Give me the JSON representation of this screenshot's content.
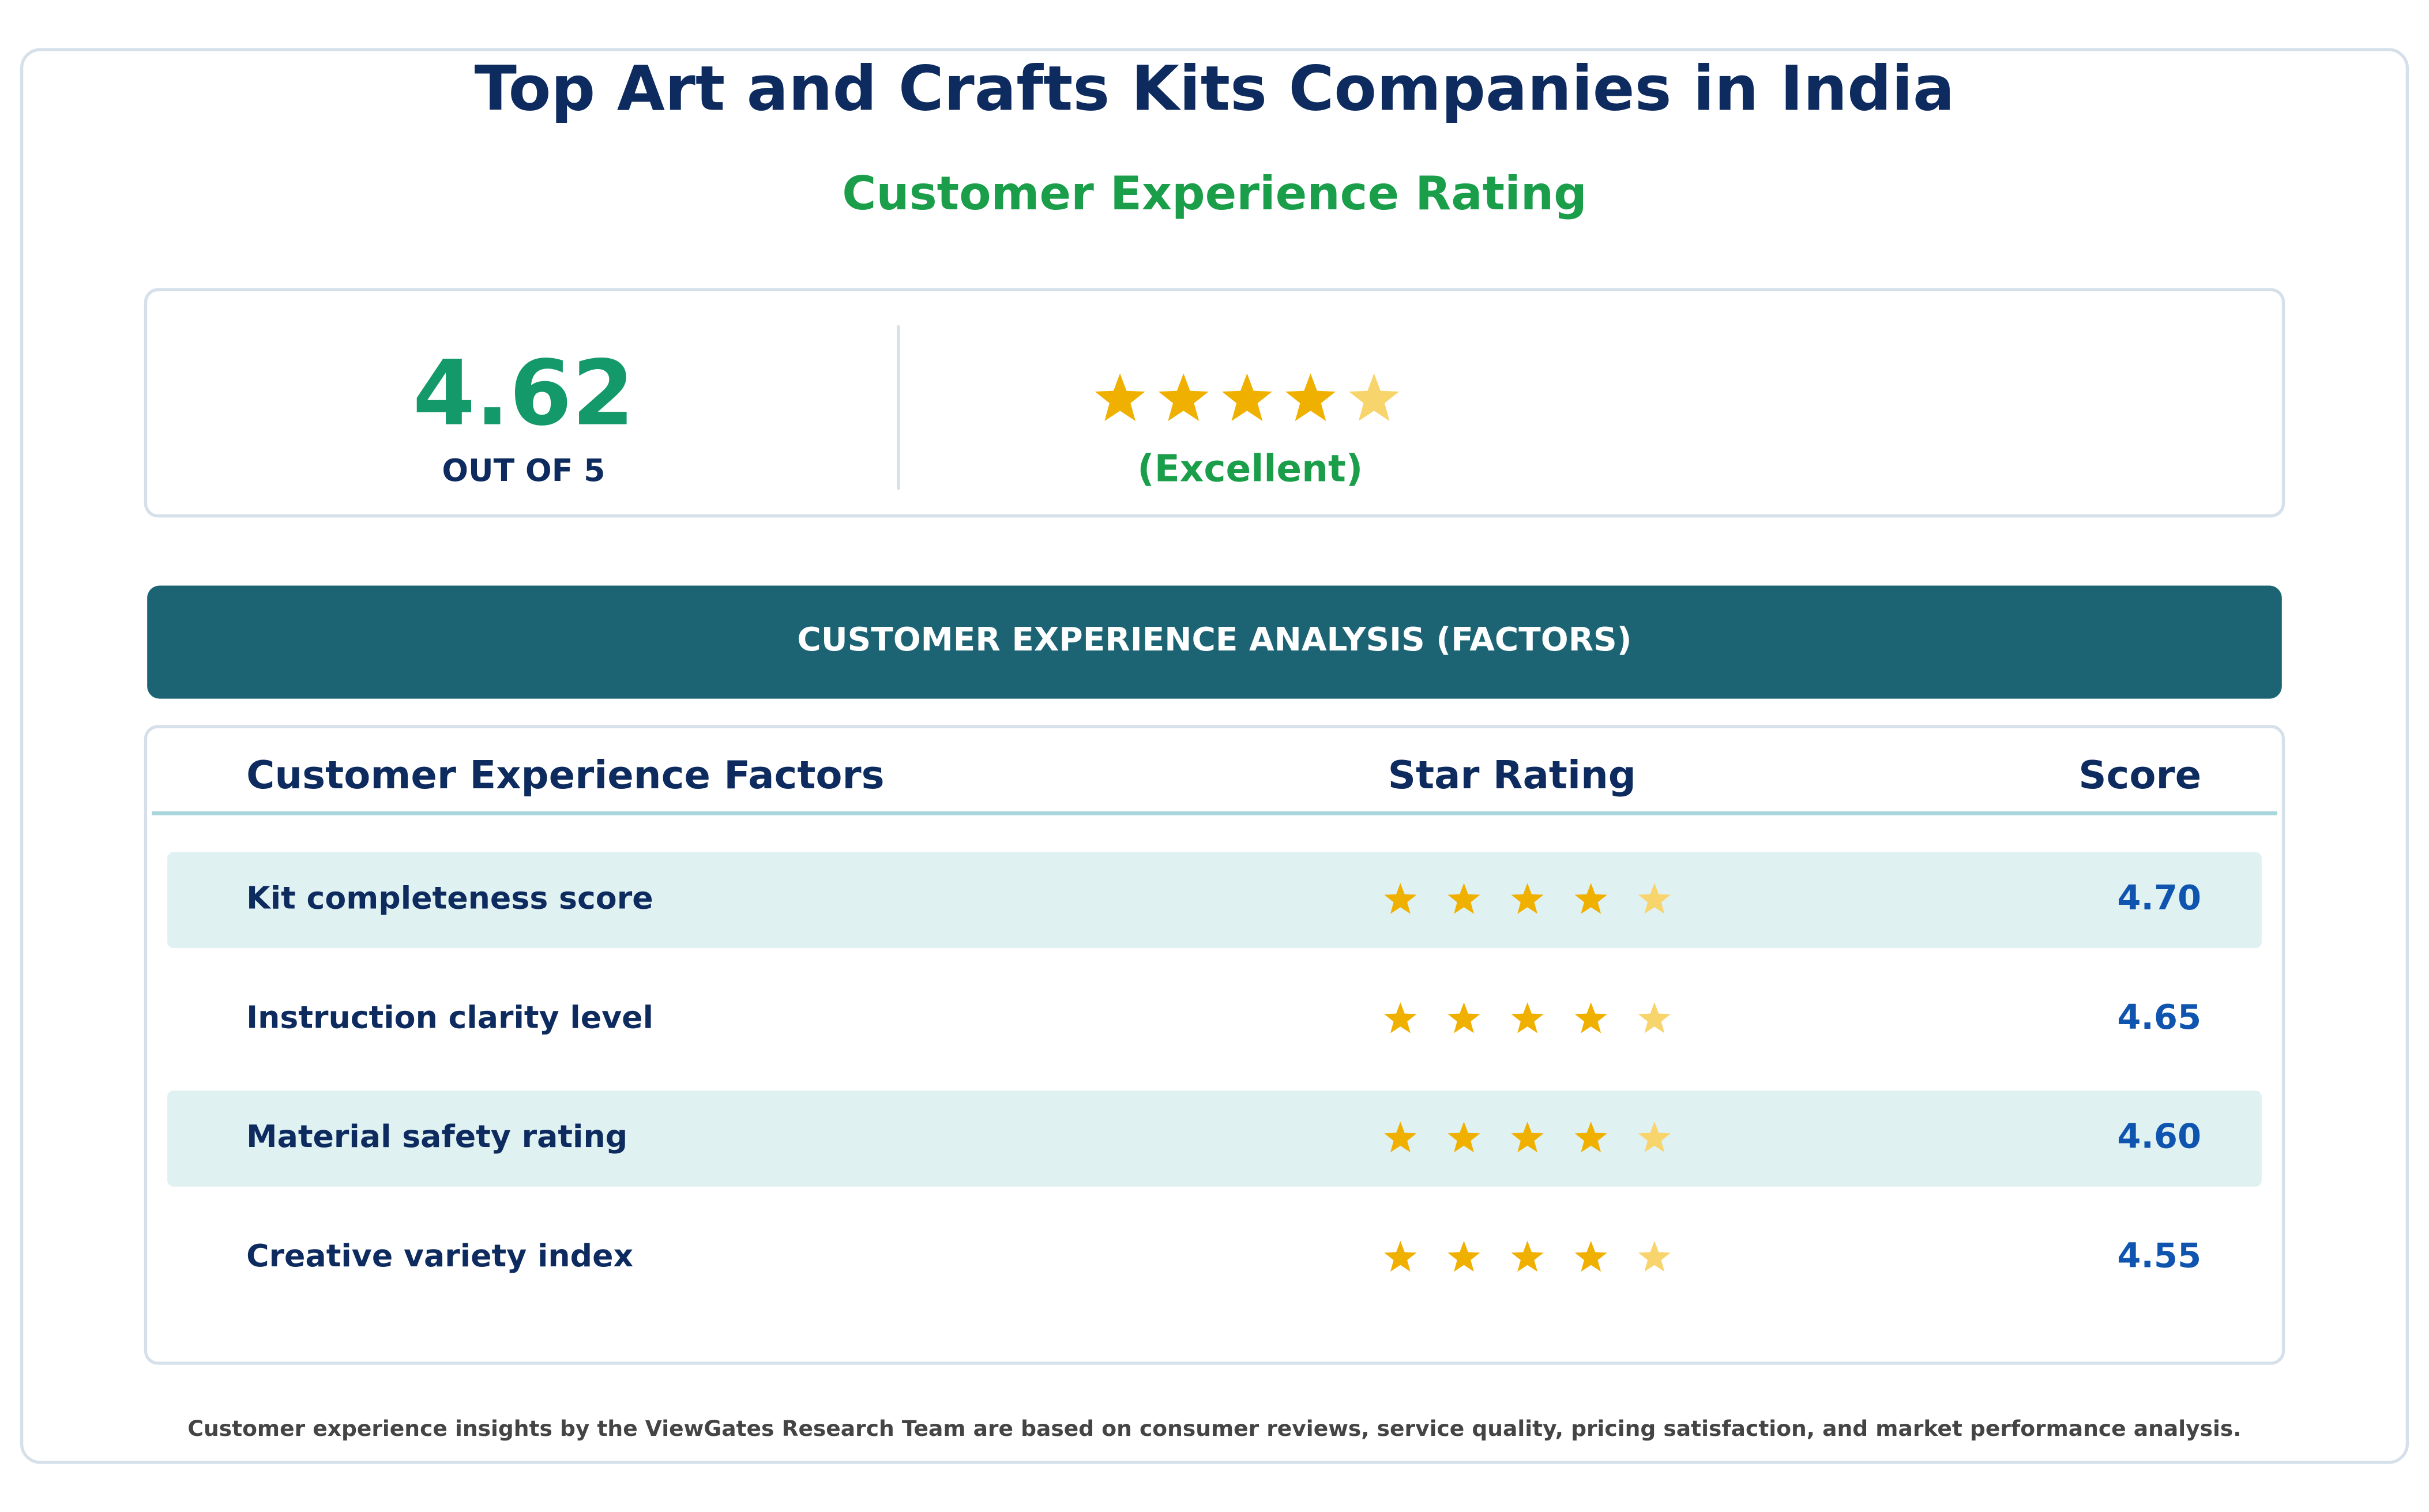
{
  "header": {
    "title": "Top Art and Crafts Kits Companies in India",
    "subtitle": "Customer Experience Rating"
  },
  "overall": {
    "score": "4.62",
    "scale_label": "OUT OF 5",
    "verdict": "(Excellent)"
  },
  "section_title": "CUSTOMER EXPERIENCE ANALYSIS (FACTORS)",
  "table": {
    "columns": [
      "Customer Experience Factors",
      "Star Rating",
      "Score"
    ],
    "rows": [
      [
        "Kit completeness score",
        "4.70"
      ],
      [
        "Instruction clarity level",
        "4.65"
      ],
      [
        "Material safety rating",
        "4.60"
      ],
      [
        "Creative variety index",
        "4.55"
      ]
    ]
  },
  "footer": "Customer experience insights by the ViewGates Research Team are based on consumer reviews, service quality, pricing satisfaction, and market performance analysis."
}
